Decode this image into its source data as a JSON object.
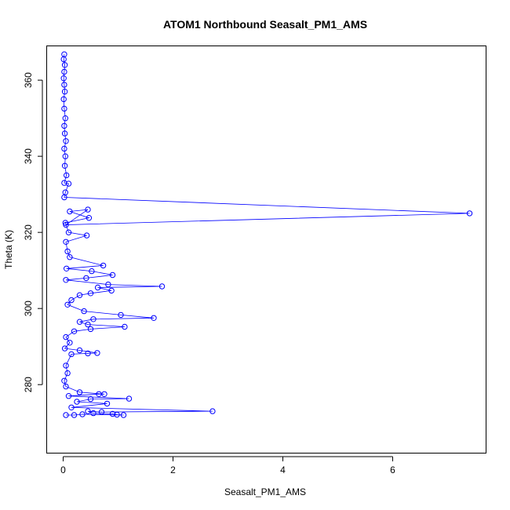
{
  "chart_data": {
    "type": "line",
    "title": "ATOM1 Northbound Seasalt_PM1_AMS",
    "xlabel": "Seasalt_PM1_AMS",
    "ylabel": "Theta (K)",
    "xlim": [
      -0.3,
      7.7
    ],
    "ylim": [
      262,
      369
    ],
    "xticks": [
      0,
      2,
      4,
      6
    ],
    "yticks": [
      280,
      300,
      320,
      340,
      360
    ],
    "grid": false,
    "series": [
      {
        "color": "#0000ff",
        "marker": "open-circle",
        "points": [
          {
            "x": 0.02,
            "y": 366.8
          },
          {
            "x": 0.01,
            "y": 365.5
          },
          {
            "x": 0.03,
            "y": 364.0
          },
          {
            "x": 0.02,
            "y": 362.2
          },
          {
            "x": 0.01,
            "y": 360.5
          },
          {
            "x": 0.02,
            "y": 358.8
          },
          {
            "x": 0.03,
            "y": 357.0
          },
          {
            "x": 0.01,
            "y": 355.0
          },
          {
            "x": 0.02,
            "y": 352.5
          },
          {
            "x": 0.04,
            "y": 350.0
          },
          {
            "x": 0.02,
            "y": 348.0
          },
          {
            "x": 0.03,
            "y": 346.0
          },
          {
            "x": 0.05,
            "y": 344.0
          },
          {
            "x": 0.02,
            "y": 342.0
          },
          {
            "x": 0.04,
            "y": 340.0
          },
          {
            "x": 0.03,
            "y": 337.5
          },
          {
            "x": 0.06,
            "y": 335.0
          },
          {
            "x": 0.02,
            "y": 333.0
          },
          {
            "x": 0.1,
            "y": 332.8
          },
          {
            "x": 0.04,
            "y": 330.5
          },
          {
            "x": 0.02,
            "y": 329.2
          },
          {
            "x": 7.4,
            "y": 325.0
          },
          {
            "x": 0.05,
            "y": 322.0
          },
          {
            "x": 0.45,
            "y": 326.0
          },
          {
            "x": 0.12,
            "y": 325.5
          },
          {
            "x": 0.47,
            "y": 323.8
          },
          {
            "x": 0.04,
            "y": 322.5
          },
          {
            "x": 0.1,
            "y": 320.0
          },
          {
            "x": 0.43,
            "y": 319.2
          },
          {
            "x": 0.05,
            "y": 317.5
          },
          {
            "x": 0.08,
            "y": 315.0
          },
          {
            "x": 0.12,
            "y": 313.5
          },
          {
            "x": 0.73,
            "y": 311.3
          },
          {
            "x": 0.06,
            "y": 310.5
          },
          {
            "x": 0.52,
            "y": 309.8
          },
          {
            "x": 0.9,
            "y": 308.8
          },
          {
            "x": 0.42,
            "y": 308.0
          },
          {
            "x": 0.05,
            "y": 307.5
          },
          {
            "x": 0.82,
            "y": 306.3
          },
          {
            "x": 1.8,
            "y": 305.8
          },
          {
            "x": 0.63,
            "y": 305.5
          },
          {
            "x": 0.88,
            "y": 304.7
          },
          {
            "x": 0.5,
            "y": 304.0
          },
          {
            "x": 0.3,
            "y": 303.5
          },
          {
            "x": 0.15,
            "y": 302.2
          },
          {
            "x": 0.08,
            "y": 301.0
          },
          {
            "x": 0.38,
            "y": 299.3
          },
          {
            "x": 1.05,
            "y": 298.3
          },
          {
            "x": 1.65,
            "y": 297.5
          },
          {
            "x": 0.55,
            "y": 297.2
          },
          {
            "x": 0.3,
            "y": 296.5
          },
          {
            "x": 0.45,
            "y": 295.8
          },
          {
            "x": 1.12,
            "y": 295.2
          },
          {
            "x": 0.5,
            "y": 294.6
          },
          {
            "x": 0.2,
            "y": 294.0
          },
          {
            "x": 0.05,
            "y": 292.5
          },
          {
            "x": 0.12,
            "y": 291.0
          },
          {
            "x": 0.03,
            "y": 289.5
          },
          {
            "x": 0.3,
            "y": 289.0
          },
          {
            "x": 0.62,
            "y": 288.3
          },
          {
            "x": 0.45,
            "y": 288.2
          },
          {
            "x": 0.15,
            "y": 288.0
          },
          {
            "x": 0.05,
            "y": 285.0
          },
          {
            "x": 0.08,
            "y": 283.0
          },
          {
            "x": 0.02,
            "y": 281.0
          },
          {
            "x": 0.05,
            "y": 279.5
          },
          {
            "x": 0.3,
            "y": 278.0
          },
          {
            "x": 0.75,
            "y": 277.5
          },
          {
            "x": 0.65,
            "y": 277.5
          },
          {
            "x": 0.1,
            "y": 277.0
          },
          {
            "x": 1.2,
            "y": 276.3
          },
          {
            "x": 0.5,
            "y": 276.2
          },
          {
            "x": 0.25,
            "y": 275.5
          },
          {
            "x": 0.8,
            "y": 275.0
          },
          {
            "x": 0.15,
            "y": 274.0
          },
          {
            "x": 2.72,
            "y": 273.0
          },
          {
            "x": 0.7,
            "y": 272.8
          },
          {
            "x": 0.45,
            "y": 273.0
          },
          {
            "x": 0.55,
            "y": 272.5
          },
          {
            "x": 0.9,
            "y": 272.3
          },
          {
            "x": 0.98,
            "y": 272.1
          },
          {
            "x": 1.1,
            "y": 272.0
          },
          {
            "x": 0.35,
            "y": 272.2
          },
          {
            "x": 0.2,
            "y": 272.0
          },
          {
            "x": 0.05,
            "y": 272.0
          }
        ]
      }
    ]
  }
}
